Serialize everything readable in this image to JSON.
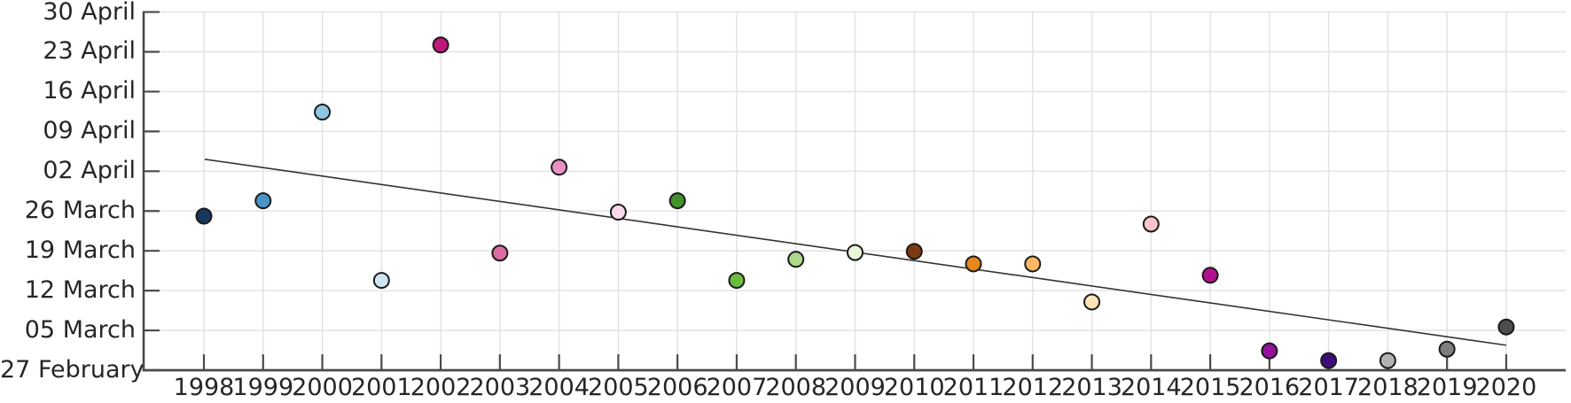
{
  "chart_data": {
    "type": "scatter",
    "title": "",
    "description": "Annual event date (one point per year) from 1998 to 2020 with a descending linear trend line; y-axis shows dates at weekly intervals from 27 February to 30 April",
    "x_tick_labels": [
      "1998",
      "1999",
      "2000",
      "2001",
      "2002",
      "2003",
      "2004",
      "2005",
      "2006",
      "2007",
      "2008",
      "2009",
      "2010",
      "2011",
      "2012",
      "2013",
      "2014",
      "2015",
      "2016",
      "2017",
      "2018",
      "2019",
      "2020"
    ],
    "y_tick_labels_bottom_to_top": [
      "27 February",
      "05 March",
      "12 March",
      "19 March",
      "26 March",
      "02 April",
      "09 April",
      "16 April",
      "23 April",
      "30 April"
    ],
    "y_axis": {
      "unit": "date",
      "origin_label": "27 February",
      "top_label": "30 April",
      "days_span": 63,
      "tick_interval_days": 7,
      "grid": true
    },
    "x_axis": {
      "unit": "year",
      "min": 1998,
      "max": 2020,
      "grid": true
    },
    "points": [
      {
        "year": 1998,
        "date": "25 March",
        "days_after_feb27": 27.1,
        "color": "#17375e"
      },
      {
        "year": 1999,
        "date": "28 March",
        "days_after_feb27": 29.8,
        "color": "#4a94c8"
      },
      {
        "year": 2000,
        "date": "12 April",
        "days_after_feb27": 45.4,
        "color": "#8fc6e4"
      },
      {
        "year": 2001,
        "date": "14 March",
        "days_after_feb27": 15.8,
        "color": "#cfe5f2"
      },
      {
        "year": 2002,
        "date": "24 April",
        "days_after_feb27": 57.2,
        "color": "#c0177c"
      },
      {
        "year": 2003,
        "date": "19 March",
        "days_after_feb27": 20.6,
        "color": "#dc6ba1"
      },
      {
        "year": 2004,
        "date": "03 April",
        "days_after_feb27": 35.7,
        "color": "#ec8fc6"
      },
      {
        "year": 2005,
        "date": "26 March",
        "days_after_feb27": 27.8,
        "color": "#fbd9eb"
      },
      {
        "year": 2006,
        "date": "28 March",
        "days_after_feb27": 29.8,
        "color": "#41922c"
      },
      {
        "year": 2007,
        "date": "14 March",
        "days_after_feb27": 15.8,
        "color": "#6cbc40"
      },
      {
        "year": 2008,
        "date": "18 March",
        "days_after_feb27": 19.5,
        "color": "#a9d989"
      },
      {
        "year": 2009,
        "date": "19 March",
        "days_after_feb27": 20.7,
        "color": "#e9f6dc"
      },
      {
        "year": 2010,
        "date": "19 March",
        "days_after_feb27": 20.9,
        "color": "#7c3a10"
      },
      {
        "year": 2011,
        "date": "17 March",
        "days_after_feb27": 18.7,
        "color": "#e6861c"
      },
      {
        "year": 2012,
        "date": "17 March",
        "days_after_feb27": 18.7,
        "color": "#fdb962"
      },
      {
        "year": 2013,
        "date": "10 March",
        "days_after_feb27": 12.0,
        "color": "#fde3b5"
      },
      {
        "year": 2014,
        "date": "24 March",
        "days_after_feb27": 25.7,
        "color": "#fbc2ca"
      },
      {
        "year": 2015,
        "date": "15 March",
        "days_after_feb27": 16.7,
        "color": "#b21190"
      },
      {
        "year": 2016,
        "date": "02 March",
        "days_after_feb27": 3.4,
        "color": "#93119b"
      },
      {
        "year": 2017,
        "date": "01 March",
        "days_after_feb27": 1.7,
        "color": "#3f0d78"
      },
      {
        "year": 2018,
        "date": "01 March",
        "days_after_feb27": 1.7,
        "color": "#b2b2b2"
      },
      {
        "year": 2019,
        "date": "02 March",
        "days_after_feb27": 3.7,
        "color": "#7f7f7f"
      },
      {
        "year": 2020,
        "date": "06 March",
        "days_after_feb27": 7.6,
        "color": "#4d4d4d"
      }
    ],
    "trend_line": {
      "start_year": 1998,
      "start_date": "04 April",
      "start_days_after_feb27": 37.1,
      "end_year": 2020,
      "end_date": "02 March",
      "end_days_after_feb27": 4.4,
      "color": "#333333"
    },
    "style": {
      "gridline_color": "#e4e4e4",
      "axis_color": "#4a4a4a",
      "tick_label_color": "#262626",
      "marker_edge_color": "#1a1a1a",
      "background": "#ffffff"
    },
    "legend": null
  }
}
